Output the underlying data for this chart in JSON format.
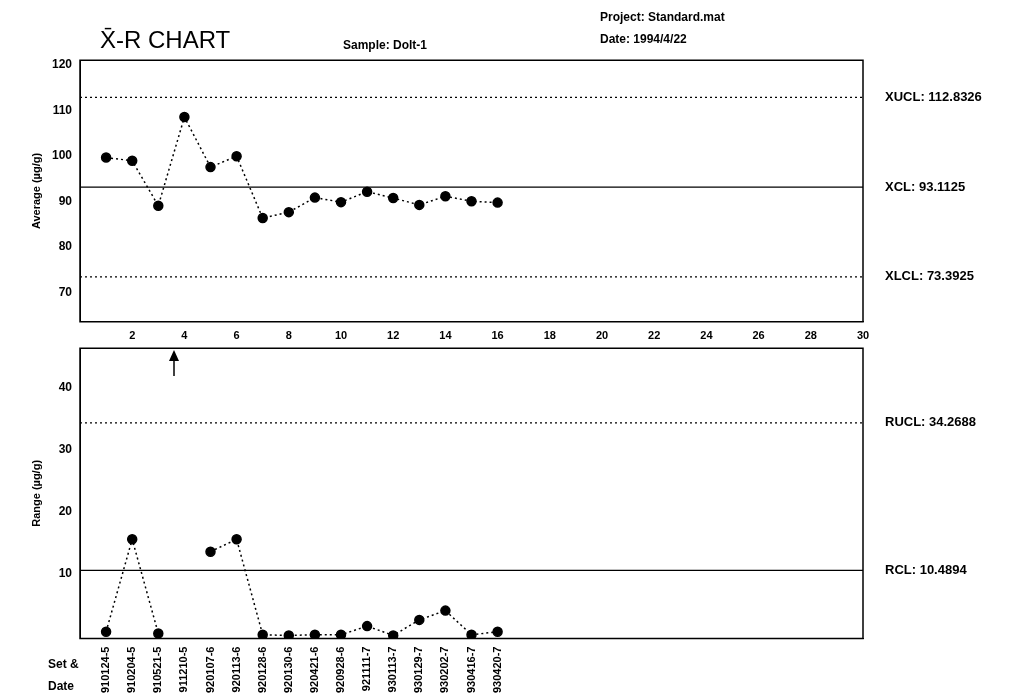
{
  "chart_data": [
    {
      "type": "line",
      "title": "X̄-R CHART",
      "subtitle": "Sample: Dolt-1",
      "annotations": [
        "Project: Standard.mat",
        "Date: 1994/4/22"
      ],
      "ylabel": "Average (µg/g)",
      "x": [
        1,
        2,
        3,
        4,
        5,
        6,
        7,
        8,
        9,
        10,
        11,
        12,
        13,
        14,
        15,
        16
      ],
      "series": [
        {
          "color": "#000000",
          "values": [
            99.6,
            98.9,
            89.0,
            108.5,
            97.5,
            99.9,
            86.3,
            87.6,
            90.8,
            89.8,
            92.1,
            90.7,
            89.2,
            91.1,
            90.0,
            89.7
          ]
        }
      ],
      "xlim": [
        0,
        30
      ],
      "xticks": [
        2,
        4,
        6,
        8,
        10,
        12,
        14,
        16,
        18,
        20,
        22,
        24,
        26,
        28,
        30
      ],
      "ylim": [
        63.5,
        121
      ],
      "yticks": [
        70,
        80,
        90,
        100,
        110,
        120
      ],
      "ref_lines": [
        {
          "axis": "y",
          "value": 112.8326,
          "label": "XUCL: 112.8326",
          "line_style": "dotted"
        },
        {
          "axis": "y",
          "value": 93.1125,
          "label": "XCL: 93.1125",
          "line_style": "solid"
        },
        {
          "axis": "y",
          "value": 73.3925,
          "label": "XLCL: 73.3925",
          "line_style": "dotted"
        }
      ],
      "marker": "circle",
      "line_style": "dotted",
      "grid": false,
      "legend": false
    },
    {
      "type": "line",
      "ylabel": "Range (µg/g)",
      "xlabel": "Set & Date",
      "categories": [
        "910124-5",
        "910204-5",
        "910521-5",
        "911210-5",
        "920107-6",
        "920113-6",
        "920128-6",
        "920130-6",
        "920421-6",
        "920928-6",
        "921111-7",
        "930113-7",
        "930129-7",
        "930202-7",
        "930416-7",
        "930420-7",
        null,
        null,
        null,
        null,
        null,
        null,
        null,
        null,
        null,
        null,
        null,
        null,
        null
      ],
      "series": [
        {
          "color": "#000000",
          "values": [
            0.6,
            15.5,
            0.3,
            null,
            13.5,
            15.5,
            0.1,
            0,
            0.1,
            0.1,
            1.5,
            0,
            2.5,
            4.0,
            0.1,
            0.6,
            null,
            null,
            null,
            null,
            null,
            null,
            null,
            null,
            null,
            null,
            null,
            null,
            null
          ]
        }
      ],
      "ylim": [
        -0.5,
        46.3
      ],
      "yticks": [
        10,
        20,
        30,
        40
      ],
      "ref_lines": [
        {
          "axis": "y",
          "value": 34.2688,
          "label": "RUCL: 34.2688",
          "line_style": "dotted"
        },
        {
          "axis": "y",
          "value": 10.4894,
          "label": "RCL: 10.4894",
          "line_style": "solid"
        }
      ],
      "marker": "circle",
      "line_style": "dotted",
      "grid": false,
      "legend": false
    }
  ]
}
